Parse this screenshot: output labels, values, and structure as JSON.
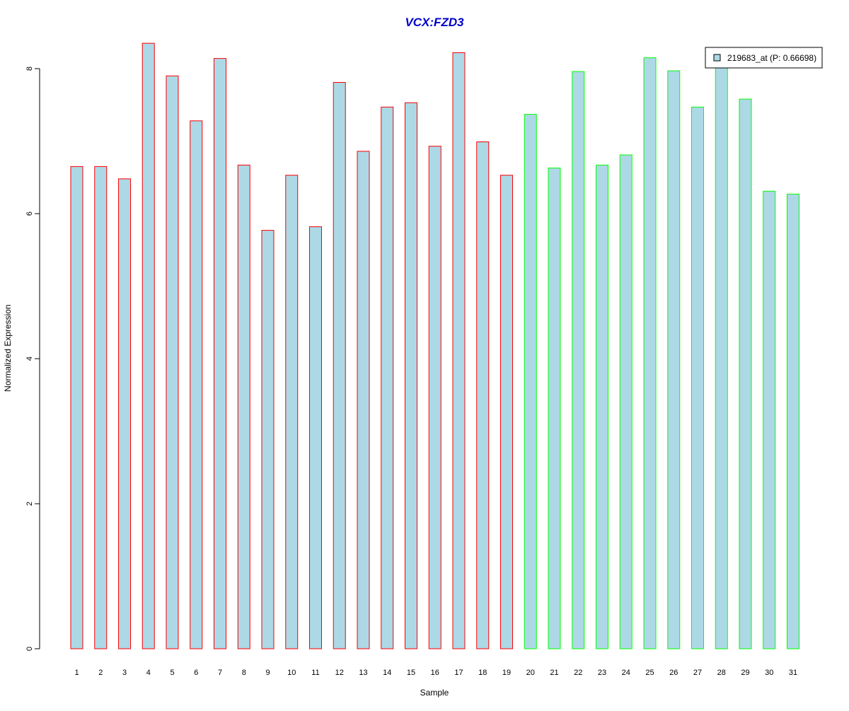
{
  "chart_data": {
    "type": "bar",
    "title": "VCX:FZD3",
    "xlabel": "Sample",
    "ylabel": "Normalized Expression",
    "categories": [
      "1",
      "2",
      "3",
      "4",
      "5",
      "6",
      "7",
      "8",
      "9",
      "10",
      "11",
      "12",
      "13",
      "14",
      "15",
      "16",
      "17",
      "18",
      "19",
      "20",
      "21",
      "22",
      "23",
      "24",
      "25",
      "26",
      "27",
      "28",
      "29",
      "30",
      "31"
    ],
    "series": [
      {
        "name": "219683_at (P: 0.66698)",
        "values": [
          6.65,
          6.65,
          6.48,
          8.35,
          7.9,
          7.28,
          8.14,
          6.67,
          5.77,
          6.53,
          5.82,
          7.81,
          6.86,
          7.47,
          7.53,
          6.93,
          8.22,
          6.99,
          6.53,
          7.37,
          6.63,
          7.96,
          6.67,
          6.81,
          8.15,
          7.97,
          7.47,
          8.05,
          7.58,
          6.31,
          6.27
        ]
      }
    ],
    "group_sizes": [
      19,
      12
    ],
    "ylim": [
      0,
      8.4
    ],
    "yticks": [
      0,
      2,
      4,
      6,
      8
    ],
    "grid": false,
    "legend_position": "top-right",
    "colors": {
      "bar_fill": "#add8e6",
      "group1_border": "#ff0000",
      "group2_border": "#00ff00",
      "title": "#0000cc",
      "axis": "#000000"
    }
  }
}
